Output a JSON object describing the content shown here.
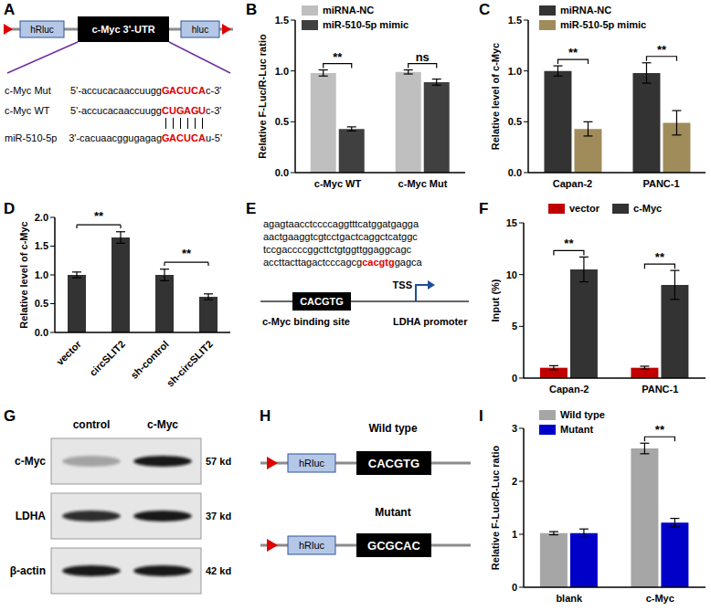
{
  "chart_data": [
    {
      "panel": "B",
      "type": "bar",
      "categories": [
        "c-Myc WT",
        "c-Myc Mut"
      ],
      "series": [
        {
          "name": "miRNA-NC",
          "color": "#bfbfbf",
          "values": [
            0.98,
            0.99
          ],
          "errors": [
            0.03,
            0.02
          ]
        },
        {
          "name": "miR-510-5p mimic",
          "color": "#404040",
          "values": [
            0.43,
            0.89
          ],
          "errors": [
            0.02,
            0.03
          ]
        }
      ],
      "ylim": [
        0,
        1.5
      ],
      "yticks": [
        {
          "value": 0,
          "label": "0.0"
        },
        0.5,
        {
          "value": 1,
          "label": "1.0"
        },
        1.5
      ],
      "y_label": "Relative F-Luc/R-Luc ratio",
      "legend": "upper left",
      "annotations": [
        {
          "category": "c-Myc WT",
          "text": "**"
        },
        {
          "category": "c-Myc Mut",
          "text": "ns"
        }
      ]
    },
    {
      "panel": "C",
      "type": "bar",
      "categories": [
        "Capan-2",
        "PANC-1"
      ],
      "series": [
        {
          "name": "miRNA-NC",
          "color": "#333333",
          "values": [
            1.0,
            0.98
          ],
          "errors": [
            0.05,
            0.1
          ]
        },
        {
          "name": "miR-510-5p mimic",
          "color": "#a08c5a",
          "values": [
            0.43,
            0.49
          ],
          "errors": [
            0.07,
            0.12
          ]
        }
      ],
      "ylim": [
        0,
        1.5
      ],
      "yticks": [
        {
          "value": 0,
          "label": "0.0"
        },
        0.5,
        {
          "value": 1,
          "label": "1.0"
        },
        1.5
      ],
      "y_label": "Relative level of c-Myc",
      "legend": "upper left",
      "annotations": [
        {
          "category": "Capan-2",
          "text": "**"
        },
        {
          "category": "PANC-1",
          "text": "**"
        }
      ]
    },
    {
      "panel": "D",
      "type": "bar",
      "categories": [
        "vector",
        "circSLIT2",
        "sh-control",
        "sh-circSLIT2"
      ],
      "values": [
        1.0,
        1.65,
        1.0,
        0.62
      ],
      "errors": [
        0.05,
        0.1,
        0.1,
        0.05
      ],
      "color": "#333333",
      "ylim": [
        0,
        2
      ],
      "yticks": [
        {
          "value": 0,
          "label": "0.0"
        },
        0.5,
        {
          "value": 1,
          "label": "1.0"
        },
        1.5,
        {
          "value": 2,
          "label": "2.0"
        }
      ],
      "y_label": "Relative level of c-Myc",
      "annotations": [
        {
          "from": "vector",
          "to": "circSLIT2",
          "text": "**"
        },
        {
          "from": "sh-control",
          "to": "sh-circSLIT2",
          "text": "**"
        }
      ]
    },
    {
      "panel": "F",
      "type": "bar",
      "categories": [
        "Capan-2",
        "PANC-1"
      ],
      "series": [
        {
          "name": "vector",
          "color": "#c00000",
          "values": [
            1.0,
            1.0
          ],
          "errors": [
            0.2,
            0.15
          ]
        },
        {
          "name": "c-Myc",
          "color": "#333333",
          "values": [
            10.5,
            9.0
          ],
          "errors": [
            1.2,
            1.4
          ]
        }
      ],
      "ylim": [
        0,
        15
      ],
      "yticks": [
        0,
        5,
        10,
        15
      ],
      "y_label": "Input (%)",
      "legend": "top",
      "annotations": [
        {
          "category": "Capan-2",
          "text": "**"
        },
        {
          "category": "PANC-1",
          "text": "**"
        }
      ]
    },
    {
      "panel": "I",
      "type": "bar",
      "categories": [
        "blank",
        "c-Myc"
      ],
      "series": [
        {
          "name": "Wild type",
          "color": "#a6a6a6",
          "values": [
            1.02,
            2.62
          ],
          "errors": [
            0.03,
            0.1
          ]
        },
        {
          "name": "Mutant",
          "color": "#0000c8",
          "values": [
            1.02,
            1.22
          ],
          "errors": [
            0.08,
            0.08
          ]
        }
      ],
      "ylim": [
        0,
        3
      ],
      "yticks": [
        0,
        1,
        2,
        3
      ],
      "y_label": "Relative F-Luc/R-Luc ratio",
      "legend": "upper left",
      "annotations": [
        {
          "category": "c-Myc",
          "text": "**"
        }
      ]
    }
  ],
  "diagrams": {
    "A": {
      "panel": "A",
      "construct": [
        "hRluc",
        "c-Myc 3'-UTR",
        "hluc"
      ],
      "rows": [
        {
          "name": "c-Myc Mut",
          "seq": [
            "5'-accucacaaccuugg",
            "GACUCA",
            "c-3'"
          ]
        },
        {
          "name": "c-Myc WT",
          "seq": [
            "5'-accucacaaccuugg",
            "CUGAGU",
            "c-3'"
          ]
        },
        {
          "name": "miR-510-5p",
          "seq": [
            "3'-cacuaacggugagag",
            "GACUCA",
            "u-5'"
          ]
        }
      ]
    },
    "E": {
      "panel": "E",
      "sequence": [
        "agagtaacctccccaggtttcatggatgagga",
        "aactgaaggtcgtcctgactcaggctcatggc",
        "tccgaccccggcttctgtggttggaggcagc",
        "accttacttagactcccagcg"
      ],
      "site": "cacgtg",
      "after_site": "gagca",
      "site_label": "c-Myc binding site",
      "box": "CACGTG",
      "tss": "TSS",
      "promoter": "LDHA promoter"
    },
    "G": {
      "panel": "G",
      "lanes": [
        "control",
        "c-Myc"
      ],
      "rows": [
        {
          "protein": "c-Myc",
          "size": "57 kd",
          "intensity": [
            0.3,
            0.95
          ]
        },
        {
          "protein": "LDHA",
          "size": "37 kd",
          "intensity": [
            0.85,
            0.95
          ]
        },
        {
          "protein": "β-actin",
          "size": "42 kd",
          "intensity": [
            0.95,
            0.95
          ]
        }
      ]
    },
    "H": {
      "panel": "H",
      "constructs": [
        {
          "name": "Wild type",
          "box": "hRluc",
          "site": "CACGTG"
        },
        {
          "name": "Mutant",
          "box": "hRluc",
          "site": "GCGCAC"
        }
      ]
    }
  }
}
